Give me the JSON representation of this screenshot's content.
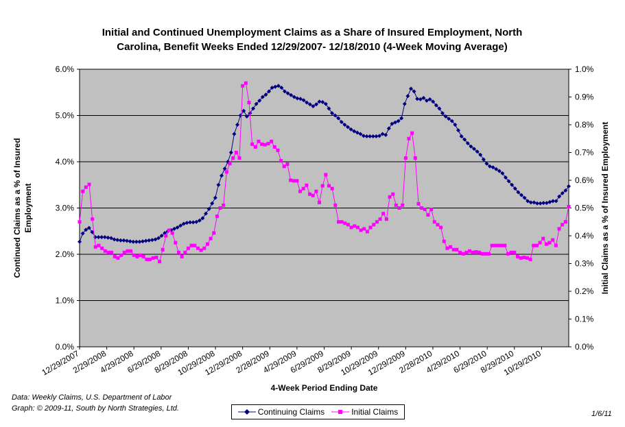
{
  "chart_data": {
    "type": "line",
    "title_lines": [
      "Initial and Continued Unemployment Claims as a Share of Insured Employment, North",
      "Carolina, Benefit Weeks Ended 12/29/2007- 12/18/2010 (4-Week Moving Average)"
    ],
    "xlabel": "4-Week Period Ending Date",
    "ylabel_left_lines": [
      "Continued Claims as a % of Insured",
      "Employment"
    ],
    "ylabel_right": "Initial Claims as a % of Insured Employment",
    "x_ticks": [
      "12/29/2007",
      "2/29/2008",
      "4/29/2008",
      "6/29/2008",
      "8/29/2008",
      "10/29/2008",
      "12/29/2008",
      "2/28/2009",
      "4/29/2009",
      "6/29/2009",
      "8/29/2009",
      "10/29/2009",
      "12/29/2009",
      "2/28/2010",
      "4/29/2010",
      "6/29/2010",
      "8/29/2010",
      "10/29/2010"
    ],
    "ylim_left": [
      0,
      6
    ],
    "ylim_right": [
      0,
      1
    ],
    "y_ticks_left": [
      "0.0%",
      "1.0%",
      "2.0%",
      "3.0%",
      "4.0%",
      "5.0%",
      "6.0%"
    ],
    "y_ticks_right": [
      "0.0%",
      "0.1%",
      "0.2%",
      "0.3%",
      "0.4%",
      "0.5%",
      "0.6%",
      "0.7%",
      "0.8%",
      "0.9%",
      "1.0%"
    ],
    "grid": true,
    "legend_position": "bottom",
    "series": [
      {
        "name": "Continuing Claims",
        "axis": "left",
        "color": "#000080",
        "marker": "diamond",
        "values": [
          2.27,
          2.45,
          2.53,
          2.57,
          2.48,
          2.37,
          2.37,
          2.37,
          2.37,
          2.36,
          2.35,
          2.32,
          2.31,
          2.3,
          2.3,
          2.29,
          2.28,
          2.27,
          2.27,
          2.27,
          2.28,
          2.29,
          2.3,
          2.31,
          2.32,
          2.35,
          2.4,
          2.46,
          2.5,
          2.52,
          2.55,
          2.58,
          2.62,
          2.66,
          2.68,
          2.69,
          2.69,
          2.7,
          2.73,
          2.78,
          2.88,
          2.98,
          3.1,
          3.22,
          3.5,
          3.7,
          3.85,
          4.0,
          4.2,
          4.6,
          4.8,
          5.0,
          5.1,
          4.98,
          5.05,
          5.15,
          5.25,
          5.32,
          5.4,
          5.45,
          5.52,
          5.6,
          5.62,
          5.64,
          5.6,
          5.52,
          5.48,
          5.44,
          5.4,
          5.37,
          5.36,
          5.33,
          5.28,
          5.24,
          5.2,
          5.24,
          5.3,
          5.29,
          5.25,
          5.15,
          5.05,
          5.0,
          4.94,
          4.86,
          4.8,
          4.75,
          4.7,
          4.66,
          4.63,
          4.6,
          4.56,
          4.55,
          4.55,
          4.55,
          4.55,
          4.56,
          4.6,
          4.58,
          4.72,
          4.82,
          4.85,
          4.88,
          4.94,
          5.25,
          5.42,
          5.58,
          5.52,
          5.36,
          5.35,
          5.38,
          5.32,
          5.35,
          5.3,
          5.22,
          5.15,
          5.05,
          4.98,
          4.93,
          4.88,
          4.8,
          4.68,
          4.55,
          4.48,
          4.4,
          4.33,
          4.28,
          4.22,
          4.15,
          4.05,
          3.96,
          3.9,
          3.88,
          3.84,
          3.8,
          3.75,
          3.66,
          3.58,
          3.5,
          3.42,
          3.34,
          3.28,
          3.22,
          3.15,
          3.12,
          3.12,
          3.1,
          3.1,
          3.11,
          3.11,
          3.13,
          3.15,
          3.15,
          3.25,
          3.32,
          3.38,
          3.47
        ]
      },
      {
        "name": "Initial Claims",
        "axis": "right",
        "color": "#ff00ff",
        "marker": "square",
        "values": [
          0.45,
          0.56,
          0.575,
          0.585,
          0.46,
          0.36,
          0.365,
          0.355,
          0.345,
          0.34,
          0.34,
          0.325,
          0.32,
          0.33,
          0.34,
          0.345,
          0.345,
          0.33,
          0.325,
          0.33,
          0.325,
          0.315,
          0.315,
          0.32,
          0.322,
          0.307,
          0.35,
          0.4,
          0.42,
          0.41,
          0.375,
          0.34,
          0.325,
          0.34,
          0.355,
          0.365,
          0.365,
          0.355,
          0.348,
          0.355,
          0.37,
          0.39,
          0.41,
          0.47,
          0.5,
          0.51,
          0.63,
          0.66,
          0.68,
          0.7,
          0.68,
          0.94,
          0.95,
          0.88,
          0.73,
          0.72,
          0.74,
          0.73,
          0.728,
          0.732,
          0.74,
          0.72,
          0.708,
          0.67,
          0.65,
          0.658,
          0.6,
          0.598,
          0.598,
          0.56,
          0.57,
          0.582,
          0.55,
          0.545,
          0.56,
          0.52,
          0.58,
          0.62,
          0.58,
          0.57,
          0.51,
          0.45,
          0.45,
          0.445,
          0.44,
          0.43,
          0.435,
          0.43,
          0.42,
          0.425,
          0.415,
          0.43,
          0.44,
          0.45,
          0.46,
          0.48,
          0.46,
          0.54,
          0.55,
          0.51,
          0.5,
          0.51,
          0.68,
          0.75,
          0.77,
          0.68,
          0.515,
          0.5,
          0.495,
          0.475,
          0.495,
          0.45,
          0.44,
          0.43,
          0.38,
          0.355,
          0.36,
          0.35,
          0.35,
          0.34,
          0.335,
          0.34,
          0.345,
          0.34,
          0.342,
          0.34,
          0.335,
          0.335,
          0.335,
          0.365,
          0.365,
          0.365,
          0.365,
          0.365,
          0.335,
          0.34,
          0.34,
          0.325,
          0.32,
          0.322,
          0.32,
          0.315,
          0.365,
          0.365,
          0.375,
          0.39,
          0.37,
          0.375,
          0.385,
          0.365,
          0.425,
          0.44,
          0.45,
          0.505
        ]
      }
    ]
  },
  "notes": {
    "source_line1": "Data:  Weekly Claims, U.S. Department of Labor",
    "source_line2": "Graph: © 2009-11, South by North Strategies, Ltd.",
    "date_stamp": "1/6/11"
  }
}
